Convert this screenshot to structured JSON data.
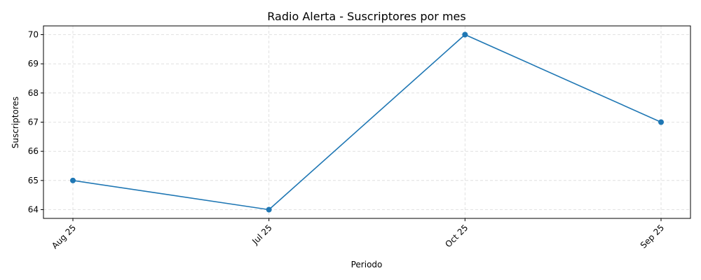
{
  "chart_data": {
    "type": "line",
    "title": "Radio Alerta - Suscriptores por mes",
    "xlabel": "Periodo",
    "ylabel": "Suscriptores",
    "categories": [
      "Aug 25",
      "Jul 25",
      "Oct 25",
      "Sep 25"
    ],
    "series": [
      {
        "values": [
          65,
          64,
          70,
          67
        ],
        "color": "#1f77b4"
      }
    ],
    "y_ticks": [
      64,
      65,
      66,
      67,
      68,
      69,
      70
    ],
    "ylim": [
      63.7,
      70.3
    ],
    "grid": true,
    "marker": "circle"
  }
}
